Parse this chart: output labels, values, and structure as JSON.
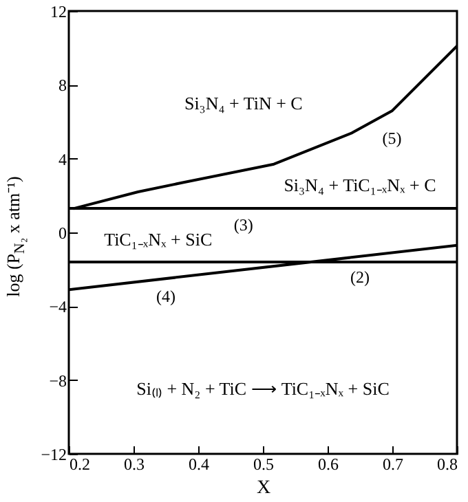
{
  "chart_data": {
    "type": "line",
    "xlabel": "X",
    "ylabel": "log (P$_{N₂}$ x atm⁻¹)",
    "xlim": [
      0.2,
      0.8
    ],
    "xticks": [
      0.2,
      0.3,
      0.4,
      0.5,
      0.6,
      0.7,
      0.8
    ],
    "ylim": [
      -12,
      12
    ],
    "yticks": [
      -12,
      -8,
      -4,
      0,
      4,
      8,
      12
    ],
    "grid": false,
    "line_style": "solid",
    "series": [
      {
        "name": "(5)",
        "color": "#000000",
        "x": [
          0.208,
          0.307,
          0.376,
          0.517,
          0.638,
          0.7,
          0.8
        ],
        "values": [
          1.3,
          2.2,
          2.7,
          3.7,
          5.4,
          6.6,
          10.1
        ]
      },
      {
        "name": "(3)",
        "color": "#000000",
        "x": [
          0.2,
          0.8
        ],
        "values": [
          1.3,
          1.3
        ]
      },
      {
        "name": "(2)",
        "color": "#000000",
        "x": [
          0.2,
          0.8
        ],
        "values": [
          -1.6,
          -1.6
        ]
      },
      {
        "name": "(4)",
        "color": "#000000",
        "x": [
          0.2,
          0.8
        ],
        "values": [
          -3.1,
          -0.7
        ]
      }
    ],
    "annotations": [
      "Si₃N₄ + TiN + C",
      "Si₃N₄ + TiC₁₋ₓNₓ + C",
      "TiC₁₋ₓNₓ + SiC",
      "Si₍ₗ₎ + N₂ + TiC ⟶ TiC₁₋ₓNₓ + SiC"
    ]
  }
}
